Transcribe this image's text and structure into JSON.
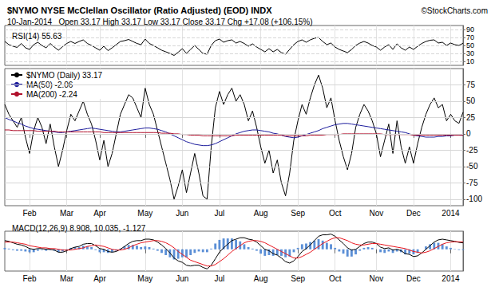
{
  "chart_data": [
    {
      "type": "line",
      "title": "RSI(14) 55.63",
      "tick_labels": "y",
      "grid": true,
      "categories": [
        null,
        null,
        null,
        null,
        null,
        null,
        "Feb",
        null,
        null,
        null,
        null,
        null,
        null,
        null,
        null,
        "Mar",
        null,
        null,
        null,
        null,
        null,
        null,
        null,
        "Apr",
        null,
        null,
        null,
        null,
        null,
        null,
        null,
        null,
        null,
        null,
        "May",
        null,
        null,
        null,
        null,
        null,
        null,
        null,
        null,
        "Jun",
        null,
        null,
        null,
        null,
        null,
        null,
        null,
        null,
        "Jul",
        null,
        null,
        null,
        null,
        null,
        null,
        null,
        null,
        null,
        "Aug",
        null,
        null,
        null,
        null,
        null,
        null,
        null,
        null,
        "Sep",
        null,
        null,
        null,
        null,
        null,
        null,
        null,
        null,
        "Oct",
        null,
        null,
        null,
        null,
        null,
        null,
        null,
        null,
        null,
        "Nov",
        null,
        null,
        null,
        null,
        null,
        null,
        null,
        null,
        "Dec",
        null,
        null,
        null,
        null,
        null,
        null,
        null,
        null,
        "2014",
        null,
        null,
        null
      ],
      "ylim": [
        0,
        100
      ],
      "yticks": [
        10,
        30,
        50,
        70,
        90
      ],
      "series": [
        {
          "color": "#000000",
          "values": [
            60,
            52,
            48,
            45,
            55,
            44,
            40,
            52,
            58,
            50,
            44,
            55,
            46,
            38,
            47,
            55,
            60,
            55,
            60,
            64,
            55,
            50,
            44,
            38,
            48,
            37,
            44,
            52,
            60,
            62,
            65,
            60,
            55,
            52,
            66,
            55,
            50,
            44,
            38,
            34,
            30,
            25,
            33,
            42,
            30,
            40,
            50,
            40,
            30,
            28,
            50,
            62,
            66,
            58,
            62,
            64,
            56,
            60,
            55,
            48,
            54,
            46,
            40,
            34,
            42,
            34,
            40,
            32,
            28,
            40,
            52,
            60,
            64,
            58,
            64,
            68,
            70,
            60,
            52,
            56,
            46,
            40,
            36,
            32,
            40,
            50,
            56,
            60,
            56,
            50,
            46,
            38,
            46,
            52,
            40,
            54,
            44,
            38,
            46,
            40,
            48,
            55,
            60,
            63,
            64,
            56,
            58,
            50,
            56,
            52,
            50,
            55.63
          ]
        }
      ]
    },
    {
      "type": "line",
      "title": "$NYMO NYSE McClellan Oscillator (Ratio Adjusted) (EOD) INDX",
      "subtitle": "10-Jan-2014   Open 33.17 High 33.17 Low 33.17 Close 33.17 Chg +17.08 (+106.15%)",
      "annotations": [
        "©StockCharts.com"
      ],
      "legend": "top-left",
      "grid": true,
      "categories": [
        null,
        null,
        null,
        null,
        null,
        null,
        "Feb",
        null,
        null,
        null,
        null,
        null,
        null,
        null,
        null,
        "Mar",
        null,
        null,
        null,
        null,
        null,
        null,
        null,
        "Apr",
        null,
        null,
        null,
        null,
        null,
        null,
        null,
        null,
        null,
        null,
        "May",
        null,
        null,
        null,
        null,
        null,
        null,
        null,
        null,
        "Jun",
        null,
        null,
        null,
        null,
        null,
        null,
        null,
        null,
        "Jul",
        null,
        null,
        null,
        null,
        null,
        null,
        null,
        null,
        null,
        "Aug",
        null,
        null,
        null,
        null,
        null,
        null,
        null,
        null,
        "Sep",
        null,
        null,
        null,
        null,
        null,
        null,
        null,
        null,
        "Oct",
        null,
        null,
        null,
        null,
        null,
        null,
        null,
        null,
        null,
        "Nov",
        null,
        null,
        null,
        null,
        null,
        null,
        null,
        null,
        "Dec",
        null,
        null,
        null,
        null,
        null,
        null,
        null,
        null,
        "2014",
        null,
        null,
        null
      ],
      "ylim": [
        -110,
        100
      ],
      "yticks": [
        -100,
        -75,
        -50,
        -25,
        0,
        25,
        50,
        75
      ],
      "series": [
        {
          "name": "$NYMO (Daily) 33.17",
          "color": "#000000",
          "values": [
            45,
            30,
            20,
            10,
            25,
            -5,
            -30,
            5,
            25,
            10,
            -15,
            15,
            -20,
            -50,
            -25,
            5,
            30,
            20,
            35,
            50,
            30,
            15,
            -10,
            -40,
            -10,
            -50,
            -30,
            0,
            30,
            45,
            60,
            55,
            40,
            25,
            70,
            45,
            30,
            5,
            -20,
            -45,
            -70,
            -100,
            -80,
            -55,
            -90,
            -60,
            -30,
            -60,
            -95,
            -100,
            -20,
            40,
            65,
            45,
            60,
            70,
            50,
            60,
            45,
            20,
            35,
            10,
            -20,
            -45,
            -25,
            -60,
            -40,
            -75,
            -95,
            -60,
            -10,
            20,
            45,
            30,
            55,
            75,
            90,
            70,
            40,
            55,
            20,
            -10,
            -35,
            -55,
            -30,
            10,
            30,
            45,
            35,
            20,
            0,
            -35,
            -10,
            15,
            -30,
            20,
            -20,
            -45,
            -20,
            -45,
            -15,
            10,
            30,
            45,
            55,
            40,
            45,
            20,
            30,
            20,
            16.09,
            33.17
          ]
        },
        {
          "name": "MA(50) -2.06",
          "color": "#1c1c9c",
          "values": [
            25,
            22,
            20,
            17,
            15,
            12,
            10,
            8,
            7,
            6,
            5,
            4,
            3,
            2,
            2,
            3,
            4,
            5,
            6,
            7,
            8,
            9,
            8,
            7,
            6,
            5,
            4,
            3,
            3,
            4,
            5,
            6,
            7,
            8,
            9,
            9,
            8,
            7,
            5,
            3,
            0,
            -3,
            -6,
            -9,
            -12,
            -14,
            -16,
            -17,
            -18,
            -18,
            -17,
            -15,
            -12,
            -9,
            -6,
            -3,
            0,
            2,
            4,
            5,
            6,
            6,
            5,
            4,
            3,
            1,
            0,
            -2,
            -4,
            -5,
            -6,
            -5,
            -3,
            -1,
            1,
            3,
            5,
            8,
            10,
            12,
            14,
            15,
            16,
            16,
            15,
            14,
            13,
            12,
            11,
            10,
            9,
            8,
            7,
            6,
            5,
            4,
            3,
            2,
            0,
            -2,
            -3,
            -4,
            -5,
            -5,
            -5,
            -4,
            -4,
            -3,
            -3,
            -2,
            -2,
            -2.06
          ]
        },
        {
          "name": "MA(200) -2.24",
          "color": "#b0102c",
          "values": [
            6,
            6,
            5,
            5,
            5,
            5,
            5,
            5,
            4,
            4,
            4,
            4,
            4,
            3,
            3,
            3,
            3,
            3,
            3,
            3,
            3,
            3,
            3,
            3,
            2,
            2,
            2,
            2,
            2,
            2,
            2,
            2,
            2,
            2,
            2,
            2,
            2,
            2,
            1,
            1,
            1,
            0,
            0,
            -1,
            -1,
            -2,
            -2,
            -2,
            -3,
            -3,
            -3,
            -3,
            -3,
            -3,
            -3,
            -3,
            -2,
            -2,
            -2,
            -2,
            -2,
            -2,
            -2,
            -2,
            -2,
            -2,
            -2,
            -2,
            -3,
            -3,
            -3,
            -3,
            -3,
            -3,
            -2,
            -2,
            -2,
            -2,
            -1,
            -1,
            -1,
            -1,
            0,
            0,
            0,
            0,
            0,
            0,
            0,
            0,
            0,
            0,
            -1,
            -1,
            -1,
            -1,
            -1,
            -1,
            -1,
            -2,
            -2,
            -2,
            -2,
            -2,
            -2,
            -2,
            -2,
            -2,
            -2,
            -2,
            -2,
            -2.24
          ]
        }
      ]
    },
    {
      "type": "line",
      "title": "MACD(12,26,9) 8.908, 10.035, -1.127",
      "tick_labels": "x",
      "grid": true,
      "categories": [
        null,
        null,
        null,
        null,
        null,
        null,
        "Feb",
        null,
        null,
        null,
        null,
        null,
        null,
        null,
        null,
        "Mar",
        null,
        null,
        null,
        null,
        null,
        null,
        null,
        "Apr",
        null,
        null,
        null,
        null,
        null,
        null,
        null,
        null,
        null,
        null,
        "May",
        null,
        null,
        null,
        null,
        null,
        null,
        null,
        null,
        "Jun",
        null,
        null,
        null,
        null,
        null,
        null,
        null,
        null,
        "Jul",
        null,
        null,
        null,
        null,
        null,
        null,
        null,
        null,
        null,
        "Aug",
        null,
        null,
        null,
        null,
        null,
        null,
        null,
        null,
        "Sep",
        null,
        null,
        null,
        null,
        null,
        null,
        null,
        null,
        "Oct",
        null,
        null,
        null,
        null,
        null,
        null,
        null,
        null,
        null,
        "Nov",
        null,
        null,
        null,
        null,
        null,
        null,
        null,
        null,
        "Dec",
        null,
        null,
        null,
        null,
        null,
        null,
        null,
        null,
        "2014",
        null,
        null,
        null
      ],
      "ylim": [
        -30,
        25
      ],
      "series": [
        {
          "type": "bar",
          "color": "#5b8fd6",
          "values": [
            2,
            1,
            -1,
            -2,
            -2,
            -3,
            -4,
            -4,
            -2,
            -1,
            -2,
            -1,
            -2,
            -4,
            -3,
            -1,
            2,
            3,
            3,
            5,
            4,
            3,
            -1,
            -4,
            -4,
            -5,
            -4,
            -2,
            1,
            4,
            6,
            6,
            5,
            3,
            4,
            3,
            1,
            -2,
            -5,
            -8,
            -11,
            -14,
            -13,
            -11,
            -11,
            -8,
            -5,
            -3,
            -4,
            -4,
            1,
            8,
            13,
            15,
            15,
            15,
            13,
            11,
            7,
            3,
            1,
            -2,
            -6,
            -9,
            -8,
            -9,
            -8,
            -9,
            -11,
            -10,
            -4,
            2,
            7,
            8,
            10,
            12,
            14,
            12,
            9,
            7,
            2,
            -3,
            -6,
            -10,
            -10,
            -7,
            -2,
            2,
            3,
            2,
            0,
            -4,
            -5,
            -3,
            -5,
            -3,
            -4,
            -7,
            -6,
            -7,
            -5,
            0,
            4,
            7,
            9,
            9,
            7,
            4,
            2,
            0.5,
            -0.9,
            -1.127
          ]
        },
        {
          "type": "line",
          "color": "#000000",
          "values": [
            12,
            11,
            9,
            7,
            6,
            4,
            1,
            0,
            1,
            1,
            0,
            0,
            -1,
            -4,
            -4,
            -2,
            1,
            3,
            4,
            7,
            8,
            8,
            5,
            1,
            0,
            -3,
            -4,
            -3,
            0,
            4,
            8,
            11,
            12,
            12,
            14,
            14,
            13,
            10,
            6,
            1,
            -5,
            -12,
            -16,
            -18,
            -22,
            -23,
            -22,
            -22,
            -25,
            -27,
            -22,
            -13,
            -4,
            2,
            7,
            12,
            14,
            16,
            16,
            14,
            13,
            10,
            5,
            0,
            -2,
            -6,
            -8,
            -12,
            -17,
            -19,
            -16,
            -10,
            -3,
            1,
            6,
            12,
            18,
            20,
            20,
            21,
            18,
            13,
            8,
            2,
            -1,
            0,
            4,
            8,
            10,
            10,
            8,
            3,
            1,
            2,
            -1,
            0,
            -2,
            -6,
            -7,
            -10,
            -9,
            -5,
            0,
            5,
            10,
            13,
            14,
            13,
            12,
            11,
            9.5,
            8.908
          ]
        },
        {
          "type": "line",
          "color": "#e8141c",
          "values": [
            10,
            10,
            10,
            9,
            8,
            7,
            5,
            4,
            3,
            2,
            2,
            1,
            1,
            0,
            -1,
            -1,
            -1,
            0,
            1,
            2,
            4,
            5,
            6,
            5,
            4,
            2,
            0,
            -1,
            -1,
            0,
            2,
            5,
            7,
            9,
            10,
            11,
            12,
            12,
            11,
            9,
            6,
            2,
            -3,
            -7,
            -11,
            -15,
            -17,
            -19,
            -21,
            -23,
            -23,
            -21,
            -17,
            -13,
            -8,
            -3,
            1,
            5,
            9,
            11,
            12,
            12,
            11,
            9,
            6,
            3,
            0,
            -3,
            -6,
            -9,
            -12,
            -12,
            -10,
            -7,
            -4,
            0,
            4,
            8,
            11,
            14,
            16,
            16,
            14,
            12,
            9,
            7,
            6,
            6,
            7,
            8,
            8,
            7,
            6,
            5,
            4,
            3,
            2,
            1,
            -1,
            -3,
            -4,
            -5,
            -4,
            -2,
            1,
            4,
            7,
            9,
            10,
            10.5,
            10.4,
            10.035
          ]
        }
      ]
    }
  ]
}
